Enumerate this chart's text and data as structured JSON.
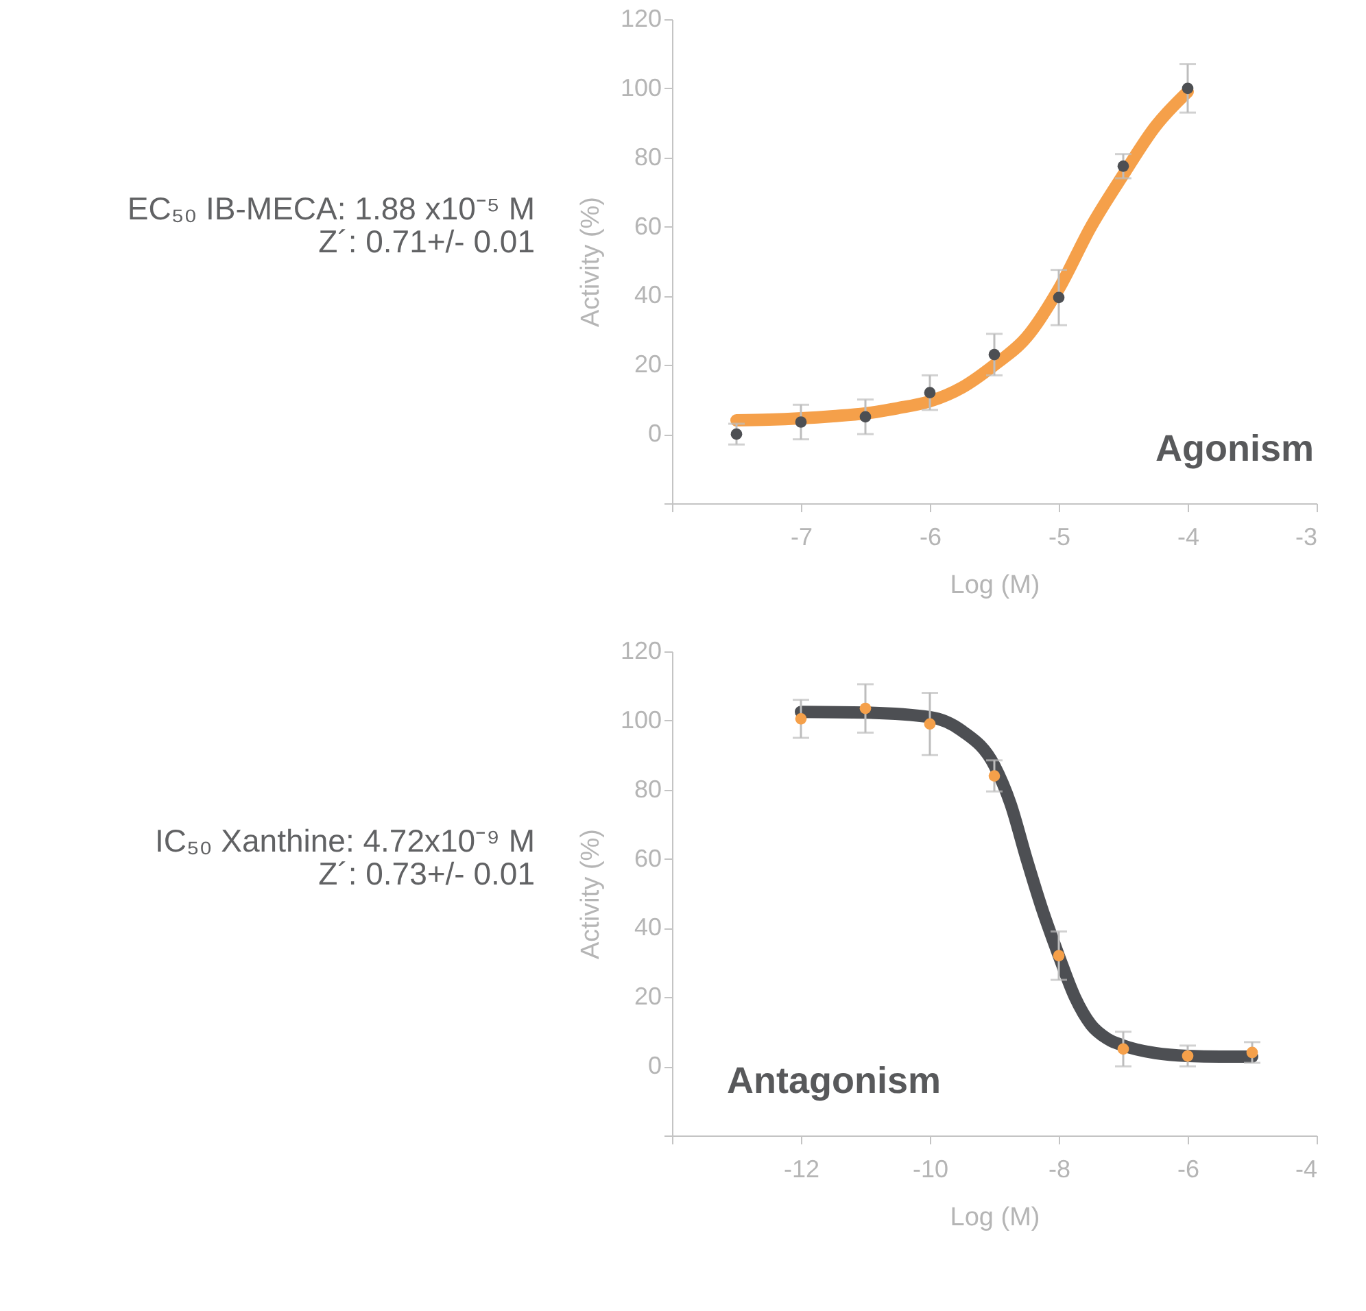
{
  "chart_data": [
    {
      "type": "scatter",
      "xlabel": "Log (M)",
      "ylabel": "Activity (%)",
      "xlim": [
        -8,
        -3
      ],
      "xticks": [
        {
          "value": -8,
          "label": null
        },
        -7,
        -6,
        -5,
        -4,
        -3
      ],
      "ylim": [
        -20,
        120
      ],
      "yticks": [
        {
          "value": -20,
          "label": null
        },
        0,
        20,
        40,
        60,
        80,
        100,
        120
      ],
      "annotations": [
        "EC₅₀ IB-MECA: 1.88 x10⁻⁵ M",
        "Z´: 0.71+/- 0.01",
        "Agonism"
      ],
      "series": [
        {
          "color": "#4d4f53",
          "marker": "circle",
          "x": [
            -7.5,
            -7,
            -6.5,
            -6,
            -5.5,
            -5,
            -4.5,
            -4
          ],
          "values": [
            0,
            3.5,
            5,
            12,
            23,
            39.5,
            77.5,
            100
          ],
          "errors": [
            3,
            5,
            5,
            5,
            6,
            8,
            3.5,
            7
          ]
        },
        {
          "type": "line",
          "color": "#f5a04a",
          "line_style": "solid",
          "x": [
            -7.5,
            -7.25,
            -7,
            -6.75,
            -6.5,
            -6.25,
            -6,
            -5.75,
            -5.5,
            -5.25,
            -5,
            -4.75,
            -4.5,
            -4.25,
            -4
          ],
          "values": [
            4,
            4.2,
            4.6,
            5.2,
            6,
            7.5,
            9.5,
            13.5,
            20,
            28,
            42,
            60,
            75,
            89,
            99
          ]
        }
      ]
    },
    {
      "type": "scatter",
      "xlabel": "Log (M)",
      "ylabel": "Activity (%)",
      "xlim": [
        -14,
        -4
      ],
      "xticks": [
        {
          "value": -14,
          "label": null
        },
        -12,
        -10,
        -8,
        -6,
        -4
      ],
      "ylim": [
        -20,
        120
      ],
      "yticks": [
        {
          "value": -20,
          "label": null
        },
        0,
        20,
        40,
        60,
        80,
        100,
        120
      ],
      "annotations": [
        "IC₅₀ Xanthine: 4.72x10⁻⁹ M",
        "Z´: 0.73+/- 0.01",
        "Antagonism"
      ],
      "series": [
        {
          "type": "line",
          "color": "#4d4f53",
          "line_style": "solid",
          "x": [
            -12,
            -11,
            -10,
            -9.5,
            -9,
            -8.75,
            -8.5,
            -8.25,
            -8,
            -7.75,
            -7.5,
            -7.25,
            -7,
            -6.5,
            -6,
            -5.5,
            -5
          ],
          "values": [
            102.5,
            102.3,
            101,
            97,
            87,
            76,
            60,
            45,
            32,
            20,
            12,
            8,
            6,
            3.8,
            3,
            2.8,
            2.8
          ]
        },
        {
          "color": "#f5a04a",
          "marker": "circle",
          "x": [
            -12,
            -11,
            -10,
            -9,
            -8,
            -7,
            -6,
            -5
          ],
          "values": [
            100.5,
            103.5,
            99,
            84,
            32,
            5,
            3,
            4
          ],
          "errors": [
            5.5,
            7,
            9,
            4.5,
            7,
            5,
            3,
            3
          ]
        }
      ]
    }
  ]
}
